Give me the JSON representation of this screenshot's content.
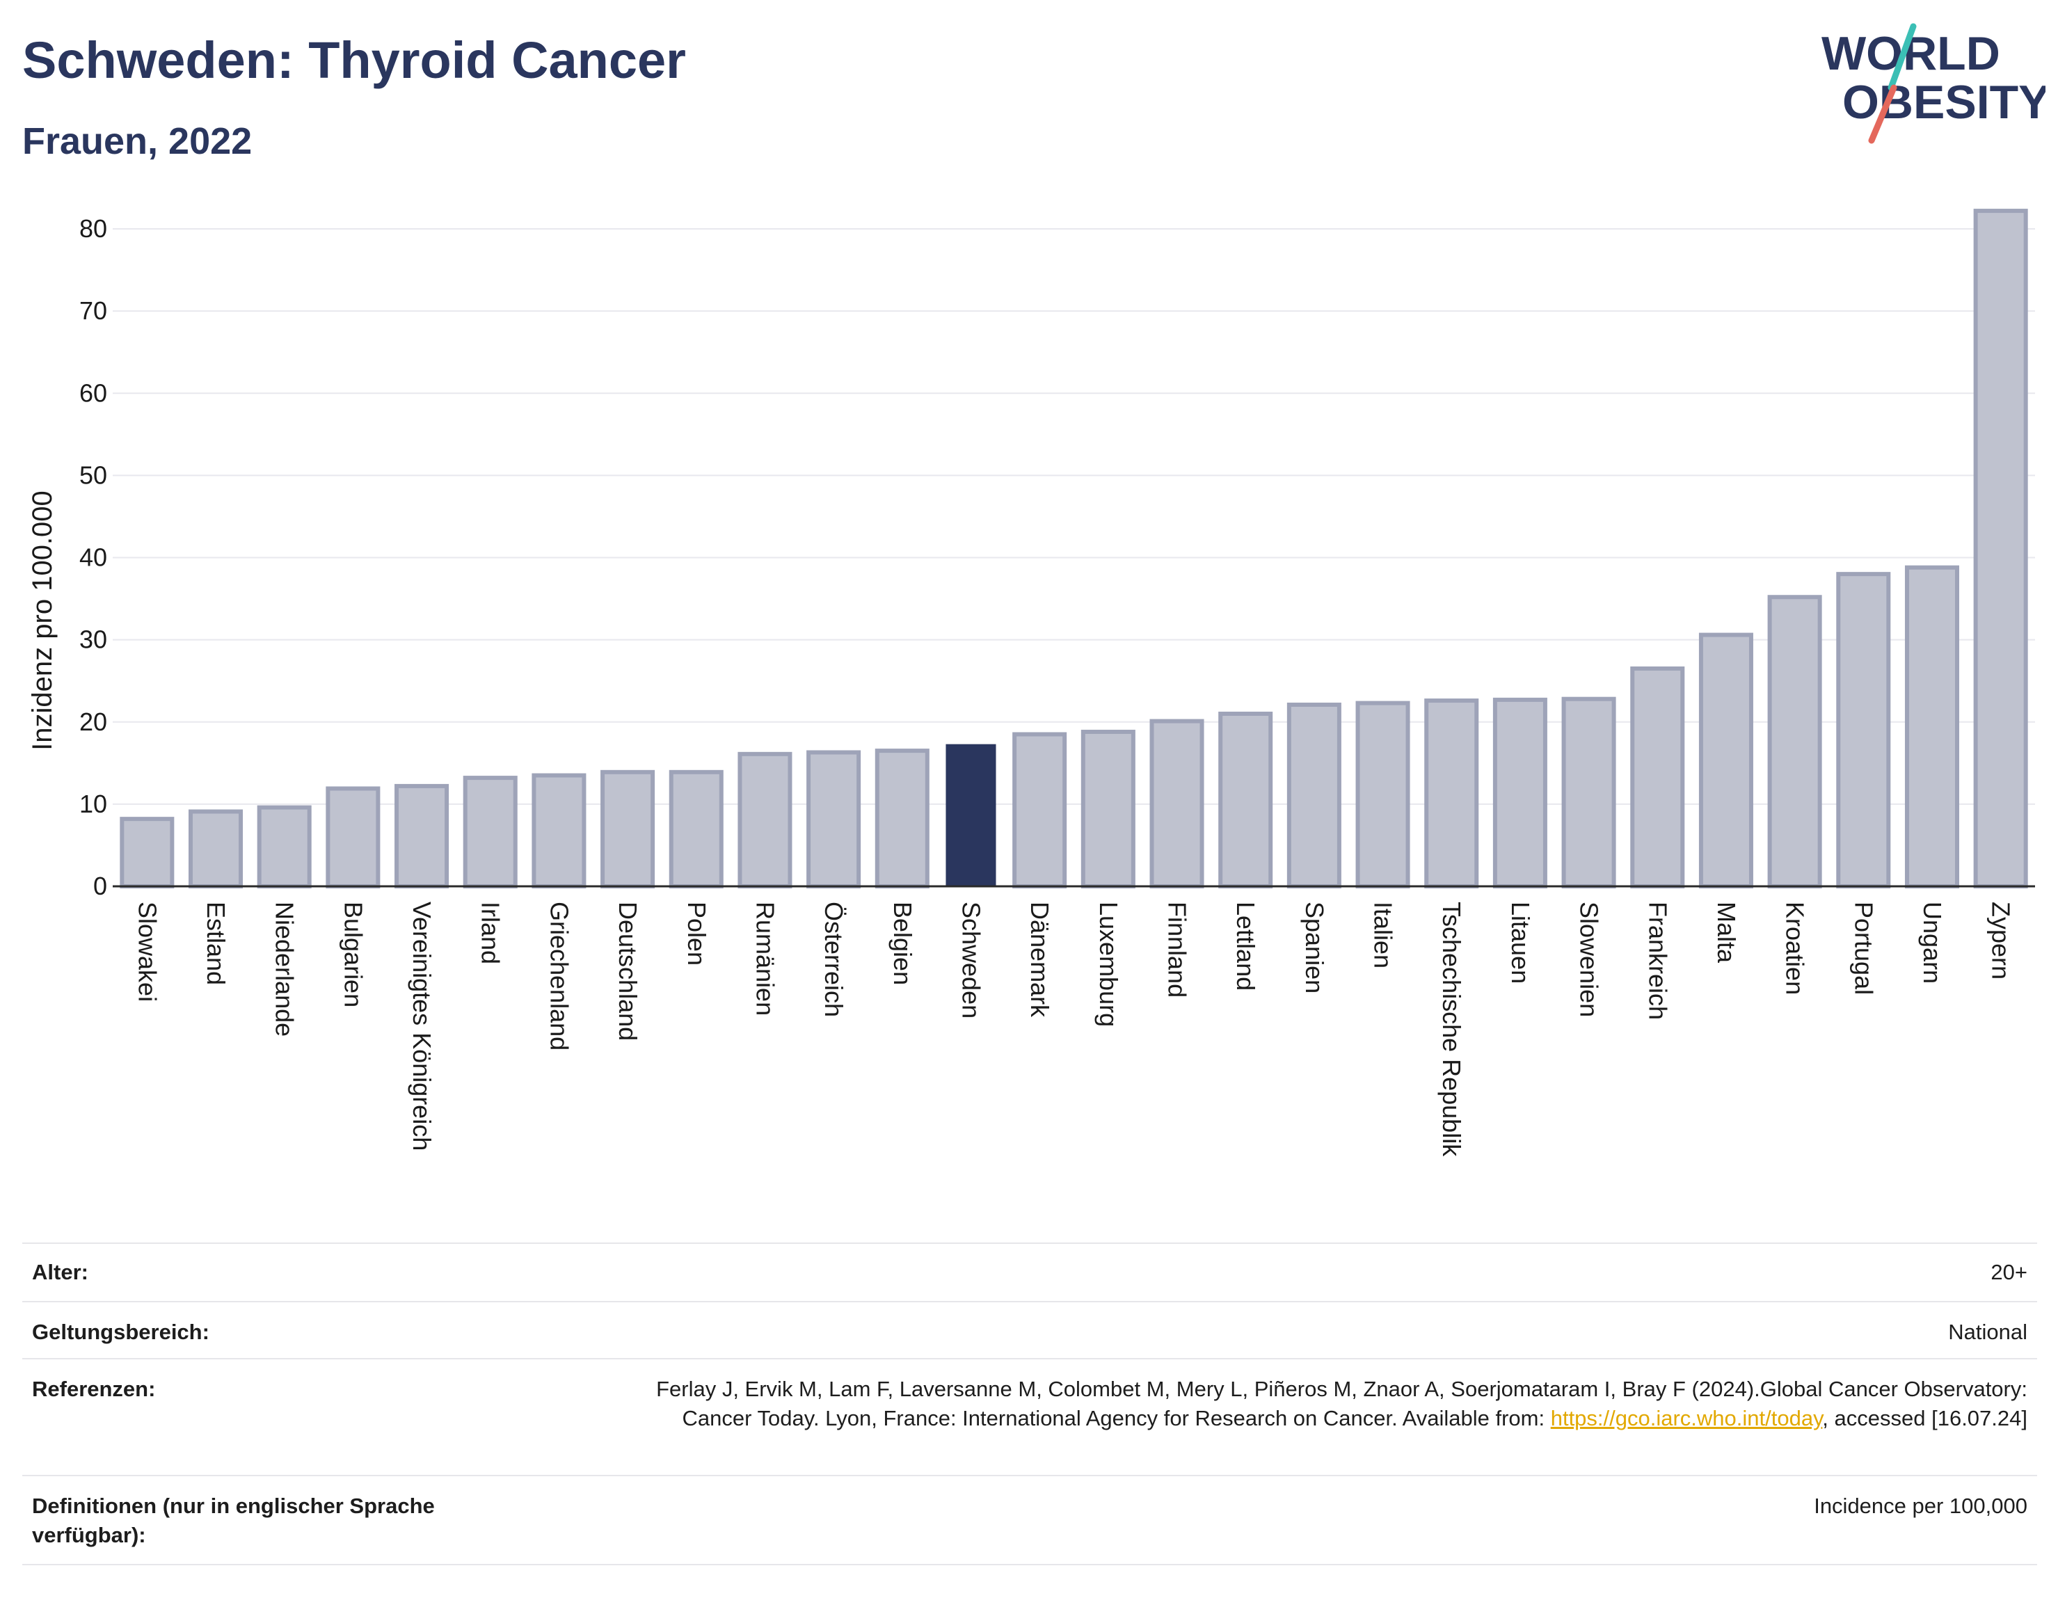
{
  "header": {
    "title": "Schweden: Thyroid Cancer",
    "subtitle": "Frauen, 2022",
    "logo_text": [
      "WORLD",
      "OBESITY"
    ]
  },
  "colors": {
    "bar_default": "#bfc2cf",
    "bar_border": "#9ea3b8",
    "bar_highlight": "#2a365e",
    "grid": "#e8e8ee",
    "axis_text": "#1a1a1a",
    "title": "#2a365e",
    "logo_red": "#e4685c",
    "logo_teal": "#3bbfb5"
  },
  "chart_data": {
    "type": "bar",
    "xlabel": "",
    "ylabel": "Inzidenz pro 100.000",
    "ylim": [
      0,
      85
    ],
    "yticks": [
      0,
      10,
      20,
      30,
      40,
      50,
      60,
      70,
      80
    ],
    "grid": true,
    "highlight": "Schweden",
    "categories": [
      "Slowakei",
      "Estland",
      "Niederlande",
      "Bulgarien",
      "Vereinigtes Königreich",
      "Irland",
      "Griechenland",
      "Deutschland",
      "Polen",
      "Rumänien",
      "Österreich",
      "Belgien",
      "Schweden",
      "Dänemark",
      "Luxemburg",
      "Finnland",
      "Lettland",
      "Spanien",
      "Italien",
      "Tschechische Republik",
      "Litauen",
      "Slowenien",
      "Frankreich",
      "Malta",
      "Kroatien",
      "Portugal",
      "Ungarn",
      "Zypern"
    ],
    "values": [
      8.2,
      9.1,
      9.6,
      11.9,
      12.2,
      13.2,
      13.5,
      13.9,
      13.9,
      16.1,
      16.3,
      16.5,
      17.3,
      18.5,
      18.8,
      20.1,
      21.0,
      22.1,
      22.3,
      22.6,
      22.7,
      22.8,
      26.5,
      30.6,
      35.2,
      38.0,
      38.8,
      82.2
    ]
  },
  "meta": {
    "rows": [
      {
        "key": "Alter:",
        "value": "20+"
      },
      {
        "key": "Geltungsbereich:",
        "value": "National"
      },
      {
        "key": "Referenzen:",
        "value_parts": [
          "Ferlay J, Ervik M, Lam F, Laversanne M, Colombet M, Mery L, Piñeros M, Znaor A, Soerjomataram I, Bray F (2024).Global Cancer Observatory: Cancer Today. Lyon, France: International Agency for Research on Cancer. Available from: ",
          "https://gco.iarc.who.int/today",
          ", accessed [16.07.24]"
        ]
      },
      {
        "key": "Definitionen (nur in englischer Sprache verfügbar):",
        "value": "Incidence per 100,000"
      }
    ]
  }
}
